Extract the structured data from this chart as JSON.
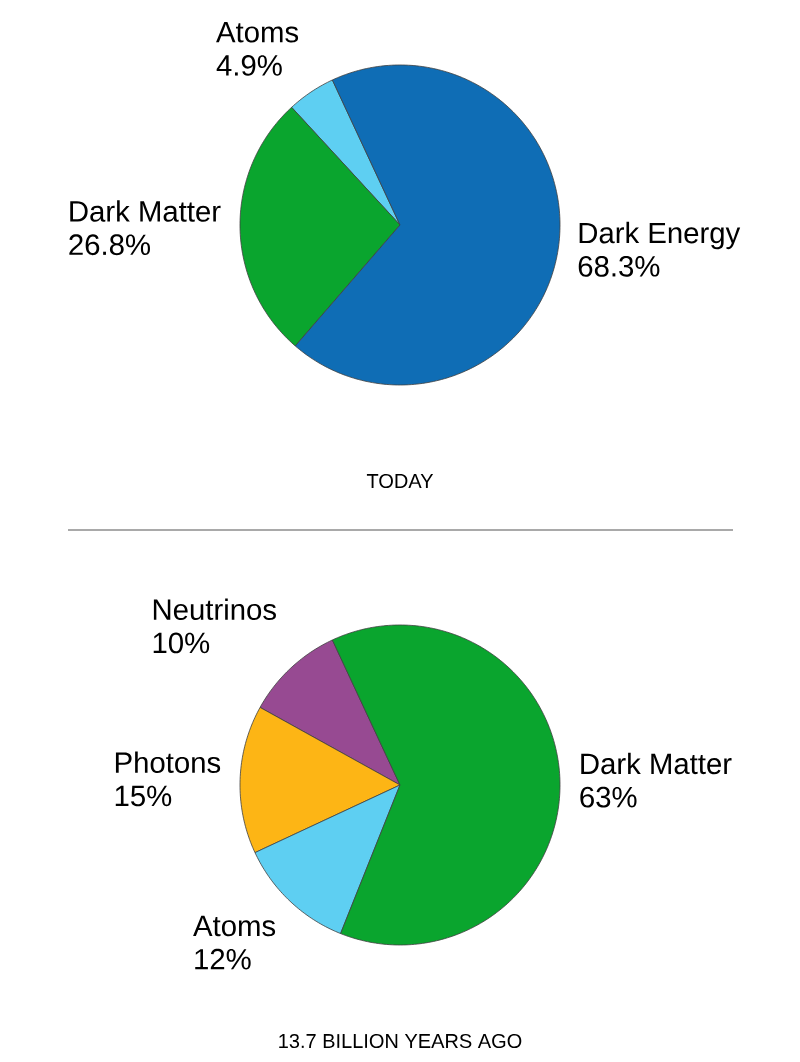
{
  "chart_data": [
    {
      "type": "pie",
      "title": "TODAY",
      "categories": [
        "Atoms",
        "Dark Matter",
        "Dark Energy"
      ],
      "values": [
        4.9,
        26.8,
        68.3
      ],
      "value_labels": [
        "4.9%",
        "26.8%",
        "68.3%"
      ],
      "colors": [
        "#5ecff2",
        "#0aa52e",
        "#0f6db5"
      ]
    },
    {
      "type": "pie",
      "title": "13.7 BILLION YEARS AGO",
      "categories": [
        "Neutrinos",
        "Photons",
        "Atoms",
        "Dark Matter"
      ],
      "values": [
        10,
        15,
        12,
        63
      ],
      "value_labels": [
        "10%",
        "15%",
        "12%",
        "63%"
      ],
      "colors": [
        "#974a92",
        "#fdb515",
        "#5ecff2",
        "#0aa52e"
      ]
    }
  ]
}
